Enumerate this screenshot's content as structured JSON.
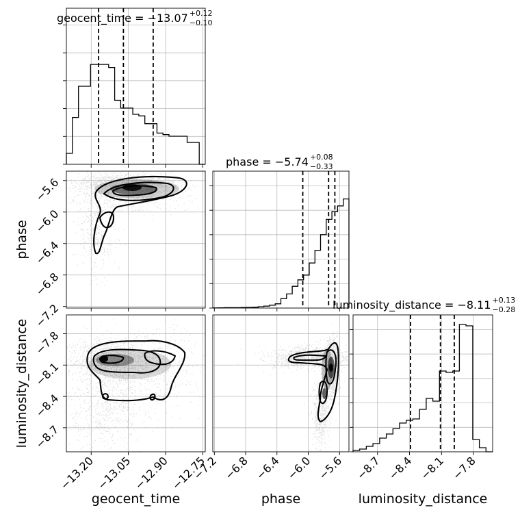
{
  "chart_data": {
    "type": "corner",
    "parameters": [
      {
        "name": "geocent_time",
        "median": -13.07,
        "plus": 0.12,
        "minus": 0.1,
        "title_main": "geocent_time = −13.07",
        "title_plus": "+0.12",
        "title_minus": "−0.10",
        "quantiles": [
          -13.17,
          -13.07,
          -12.95
        ],
        "range": [
          -13.3,
          -12.74
        ],
        "ticks": [
          -13.2,
          -13.05,
          -12.9,
          -12.75
        ],
        "tick_labels": [
          "−13.20",
          "−13.05",
          "−12.90",
          "−12.75"
        ],
        "histogram": [
          0.07,
          0.3,
          0.5,
          0.5,
          0.64,
          0.64,
          0.64,
          0.62,
          0.41,
          0.36,
          0.36,
          0.32,
          0.31,
          0.26,
          0.26,
          0.2,
          0.19,
          0.18,
          0.18,
          0.18,
          0.14,
          0.14,
          0.0
        ]
      },
      {
        "name": "phase",
        "median": -5.74,
        "plus": 0.08,
        "minus": 0.33,
        "title_main": "phase = −5.74",
        "title_plus": "+0.08",
        "title_minus": "−0.33",
        "quantiles": [
          -6.07,
          -5.74,
          -5.66
        ],
        "range": [
          -7.22,
          -5.48
        ],
        "ticks": [
          -7.2,
          -6.8,
          -6.4,
          -6.0,
          -5.6
        ],
        "tick_labels": [
          "−7.2",
          "−6.8",
          "−6.4",
          "−6.0",
          "−5.6"
        ],
        "histogram": [
          0.001,
          0.002,
          0.003,
          0.003,
          0.003,
          0.004,
          0.005,
          0.006,
          0.01,
          0.014,
          0.021,
          0.031,
          0.069,
          0.103,
          0.159,
          0.206,
          0.241,
          0.329,
          0.422,
          0.536,
          0.648,
          0.704,
          0.746,
          0.797
        ]
      },
      {
        "name": "luminosity_distance",
        "median": -8.11,
        "plus": 0.13,
        "minus": 0.28,
        "title_main": "luminosity_distance = −8.11",
        "title_plus": "+0.13",
        "title_minus": "−0.28",
        "quantiles": [
          -8.39,
          -8.11,
          -7.98
        ],
        "range": [
          -8.93,
          -7.62
        ],
        "ticks": [
          -8.7,
          -8.4,
          -8.1,
          -7.8
        ],
        "tick_labels": [
          "−8.7",
          "−8.4",
          "−8.1",
          "−7.8"
        ],
        "histogram": [
          0.01,
          0.02,
          0.04,
          0.06,
          0.1,
          0.13,
          0.17,
          0.21,
          0.23,
          0.24,
          0.31,
          0.39,
          0.37,
          0.59,
          0.58,
          0.59,
          0.93,
          0.92,
          0.09,
          0.03,
          0.0
        ]
      }
    ],
    "hist_ticks": [
      0,
      1,
      2,
      3,
      4,
      5
    ],
    "grid": true,
    "quantiles_shown": [
      0.16,
      0.5,
      0.84
    ]
  }
}
